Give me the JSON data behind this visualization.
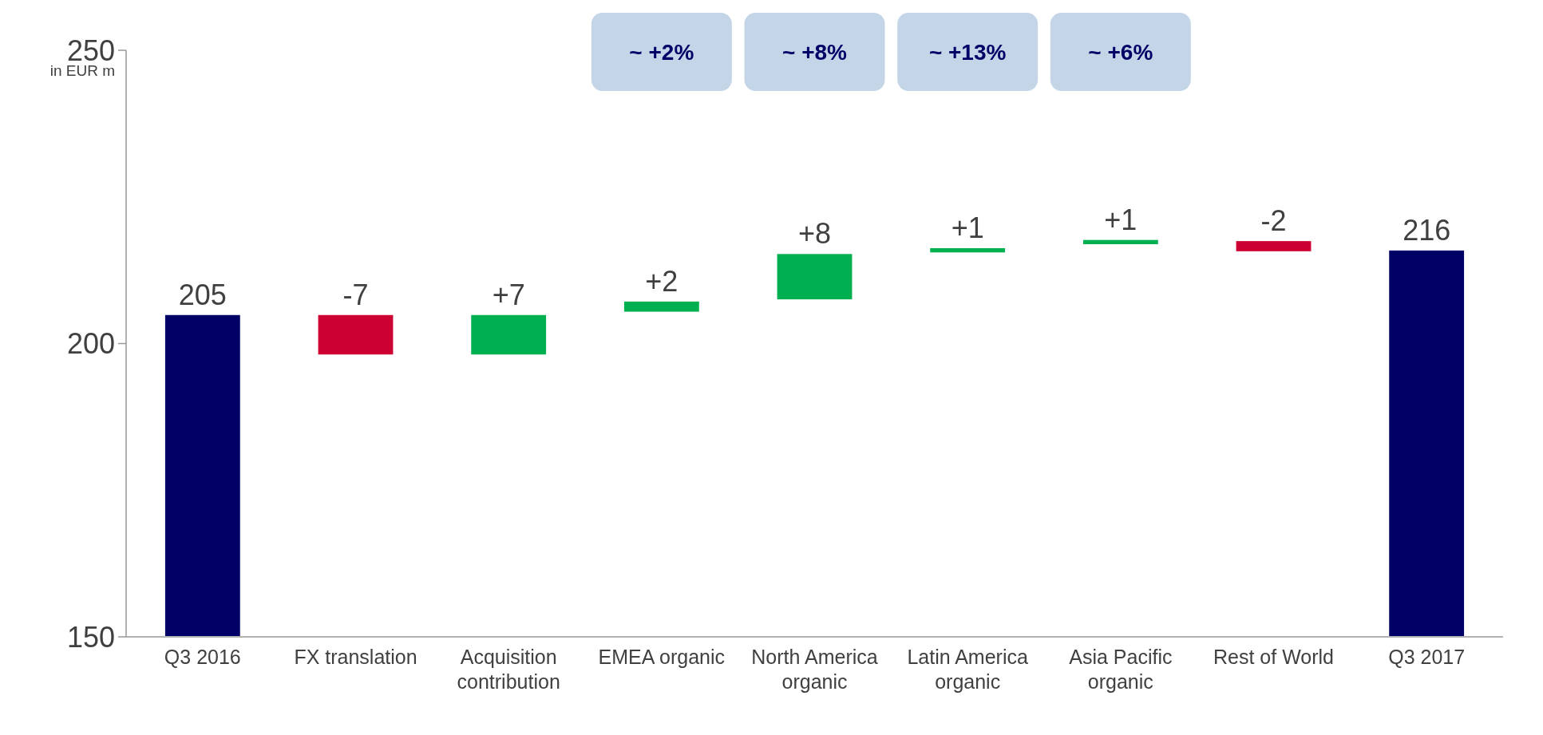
{
  "chart_data": {
    "type": "bar",
    "ylabel": "in EUR m",
    "categories": [
      "Q3 2016",
      "FX translation",
      "Acquisition contribution",
      "EMEA organic",
      "North America organic",
      "Latin America organic",
      "Asia Pacific organic",
      "Rest of World",
      "Q3 2017"
    ],
    "values": [
      55,
      -7,
      7,
      2,
      8,
      1,
      1,
      -2,
      66
    ],
    "base": [
      150,
      205,
      198,
      205.3,
      207.4,
      215.4,
      216.8,
      217.6,
      150
    ],
    "colors": [
      "#000066",
      "#cc0033",
      "#00b050",
      "#00b050",
      "#00b050",
      "#00b050",
      "#00b050",
      "#cc0033",
      "#000066"
    ],
    "value_labels": [
      "205",
      "-7",
      "+7",
      "+2",
      "+8",
      "+1",
      "+1",
      "-2",
      "216"
    ],
    "ylim": [
      150,
      250
    ],
    "yticks": [
      150,
      200,
      250
    ],
    "grid": false,
    "annotations": [
      "~ +2%",
      "~ +8%",
      "~ +13%",
      "~ +6%"
    ]
  }
}
